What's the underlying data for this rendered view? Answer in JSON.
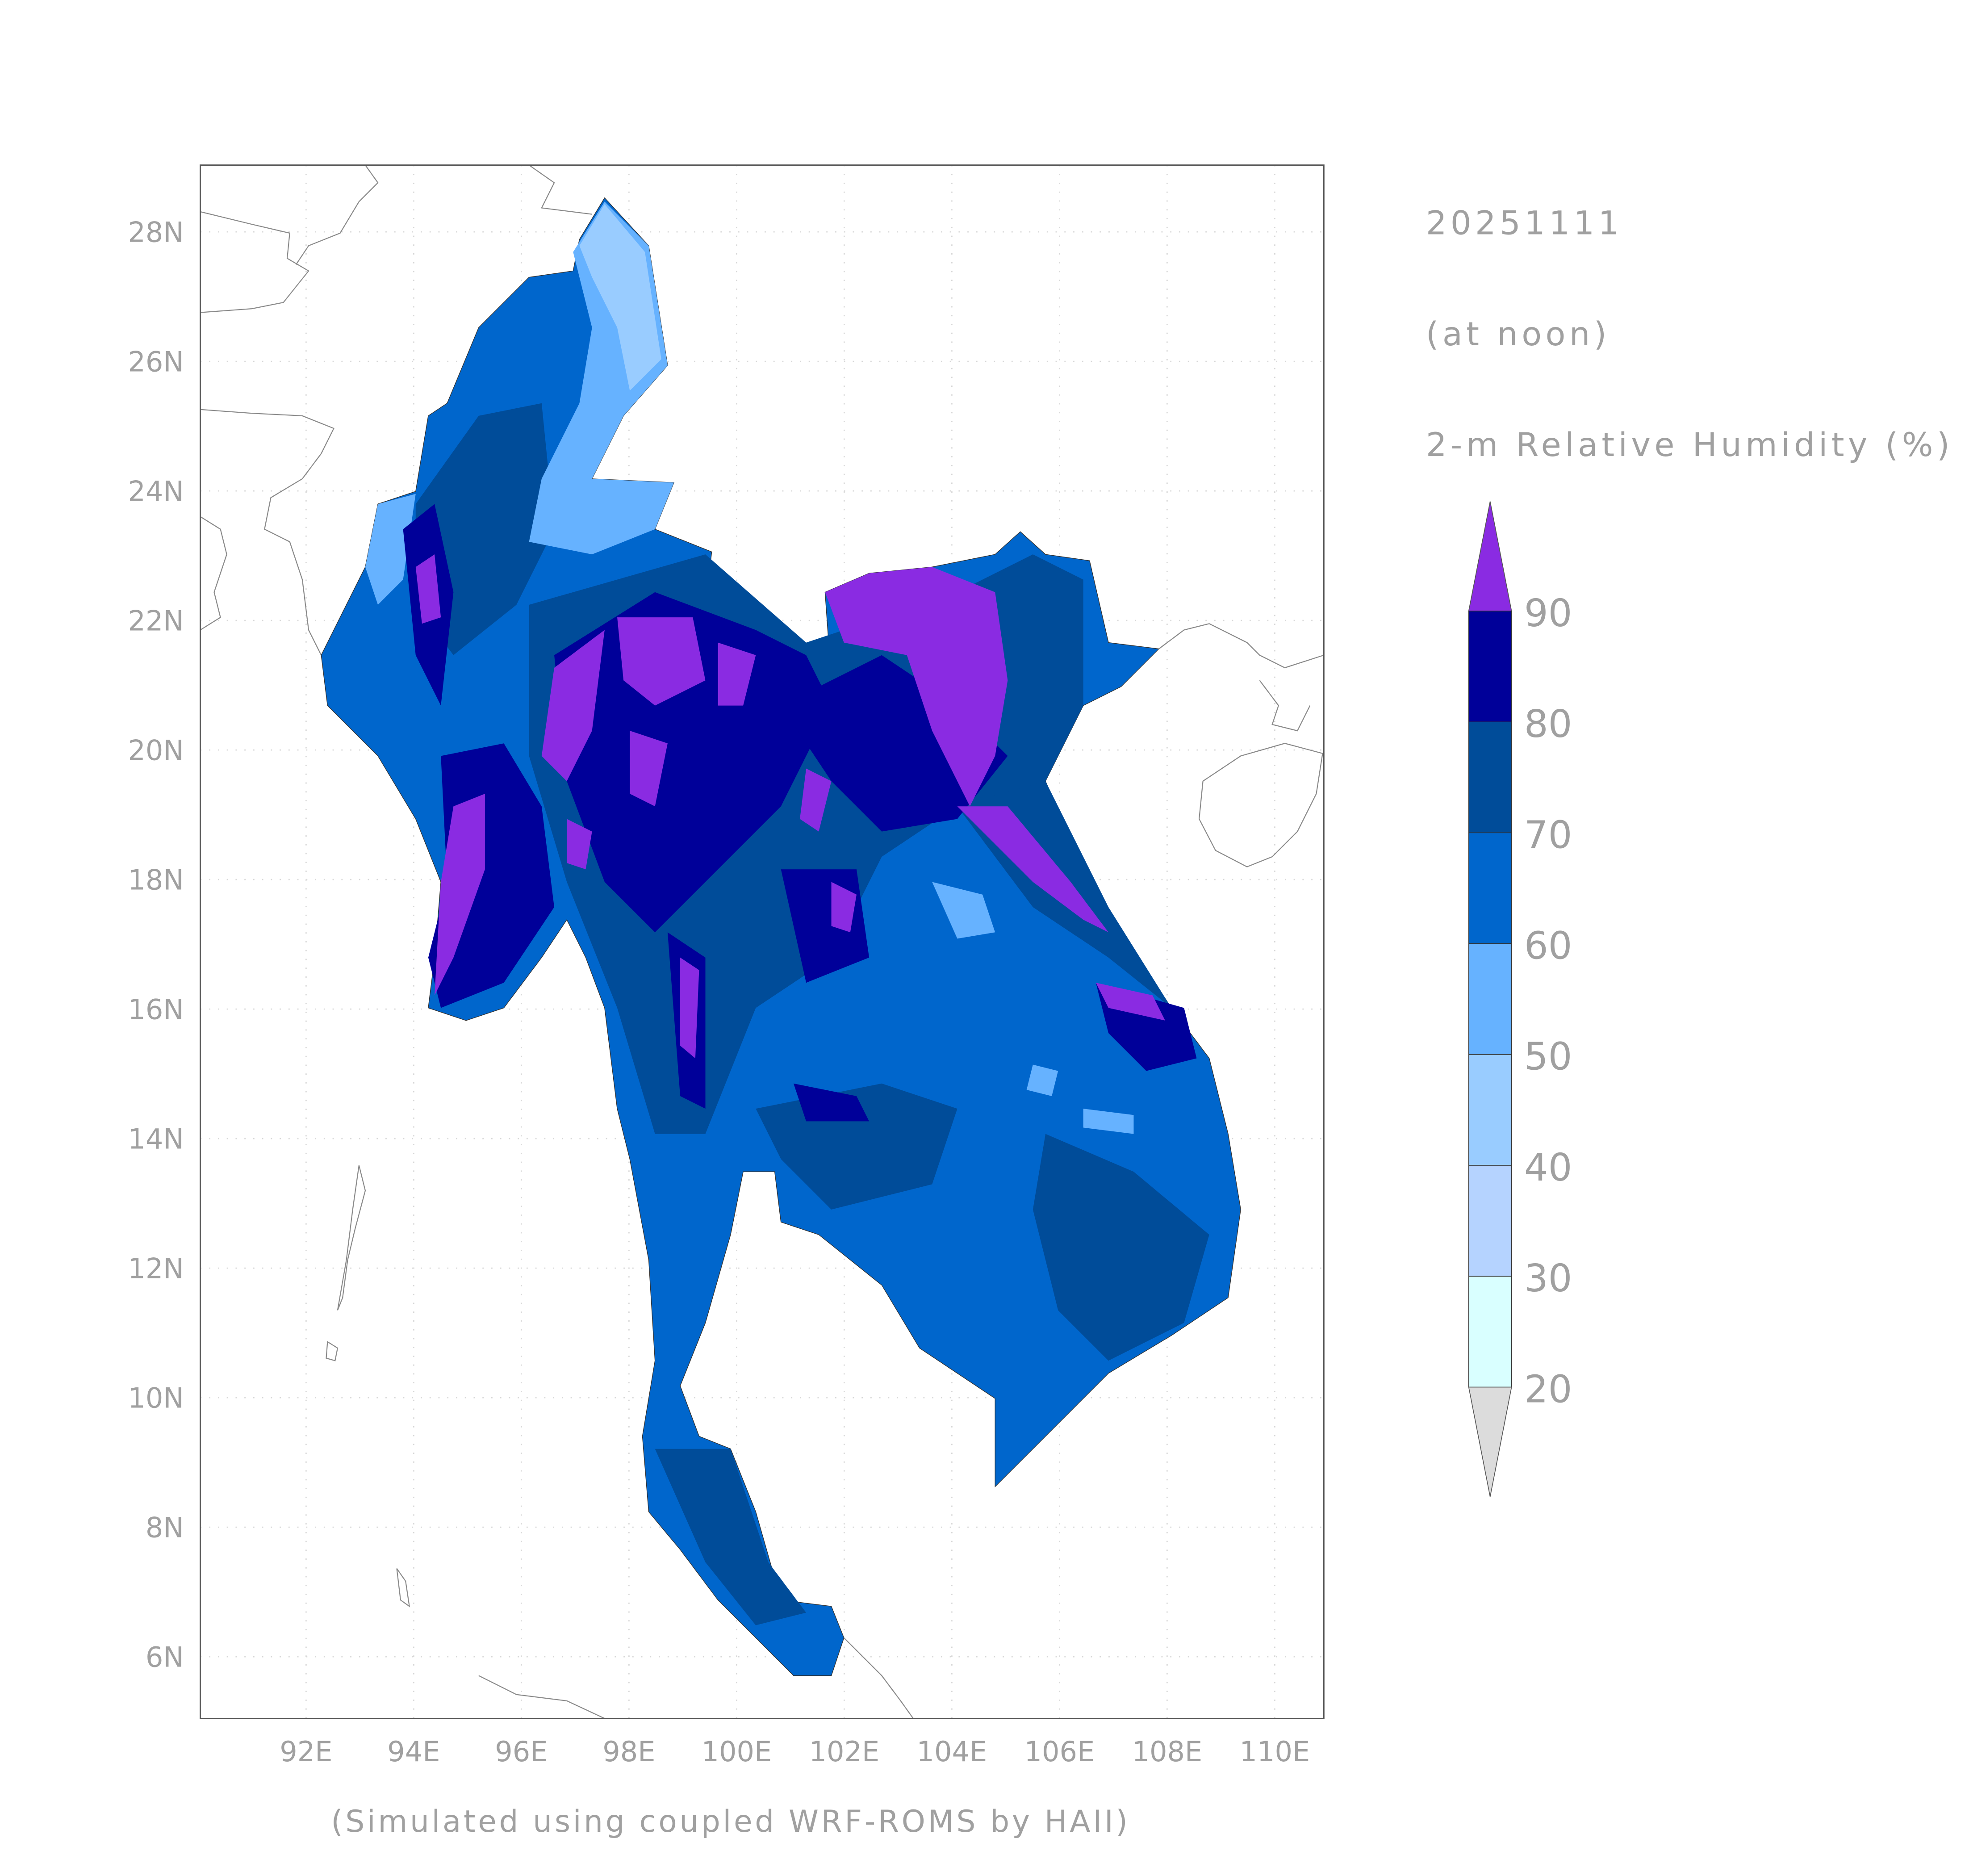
{
  "titles": {
    "date": "20251111",
    "time": "(at noon)",
    "variable": "2-m Relative Humidity (%)"
  },
  "footer": "(Simulated using coupled WRF-ROMS by HAII)",
  "axes": {
    "lon_ticks": [
      "92E",
      "94E",
      "96E",
      "98E",
      "100E",
      "102E",
      "104E",
      "106E",
      "108E",
      "110E"
    ],
    "lon_values": [
      92,
      94,
      96,
      98,
      100,
      102,
      104,
      106,
      108,
      110
    ],
    "lat_ticks": [
      "28N",
      "26N",
      "24N",
      "22N",
      "20N",
      "18N",
      "16N",
      "14N",
      "12N",
      "10N",
      "8N",
      "6N"
    ],
    "lat_values": [
      28,
      26,
      24,
      22,
      20,
      18,
      16,
      14,
      12,
      10,
      8,
      6
    ],
    "lon_range": [
      90,
      111
    ],
    "lat_range": [
      5,
      29
    ],
    "grid": "dotted"
  },
  "colorbar": {
    "labels": [
      "90",
      "80",
      "70",
      "60",
      "50",
      "40",
      "30",
      "20"
    ],
    "over_color": "#8A2BE2",
    "under_color": "#DCDCDC",
    "bins": [
      {
        "range": [
          80,
          90
        ],
        "color": "#000099"
      },
      {
        "range": [
          70,
          80
        ],
        "color": "#004C99"
      },
      {
        "range": [
          60,
          70
        ],
        "color": "#0066CC"
      },
      {
        "range": [
          50,
          60
        ],
        "color": "#66B2FF"
      },
      {
        "range": [
          40,
          50
        ],
        "color": "#99CCFF"
      },
      {
        "range": [
          30,
          40
        ],
        "color": "#B5D3FF"
      },
      {
        "range": [
          20,
          30
        ],
        "color": "#D9FFFF"
      }
    ]
  }
}
